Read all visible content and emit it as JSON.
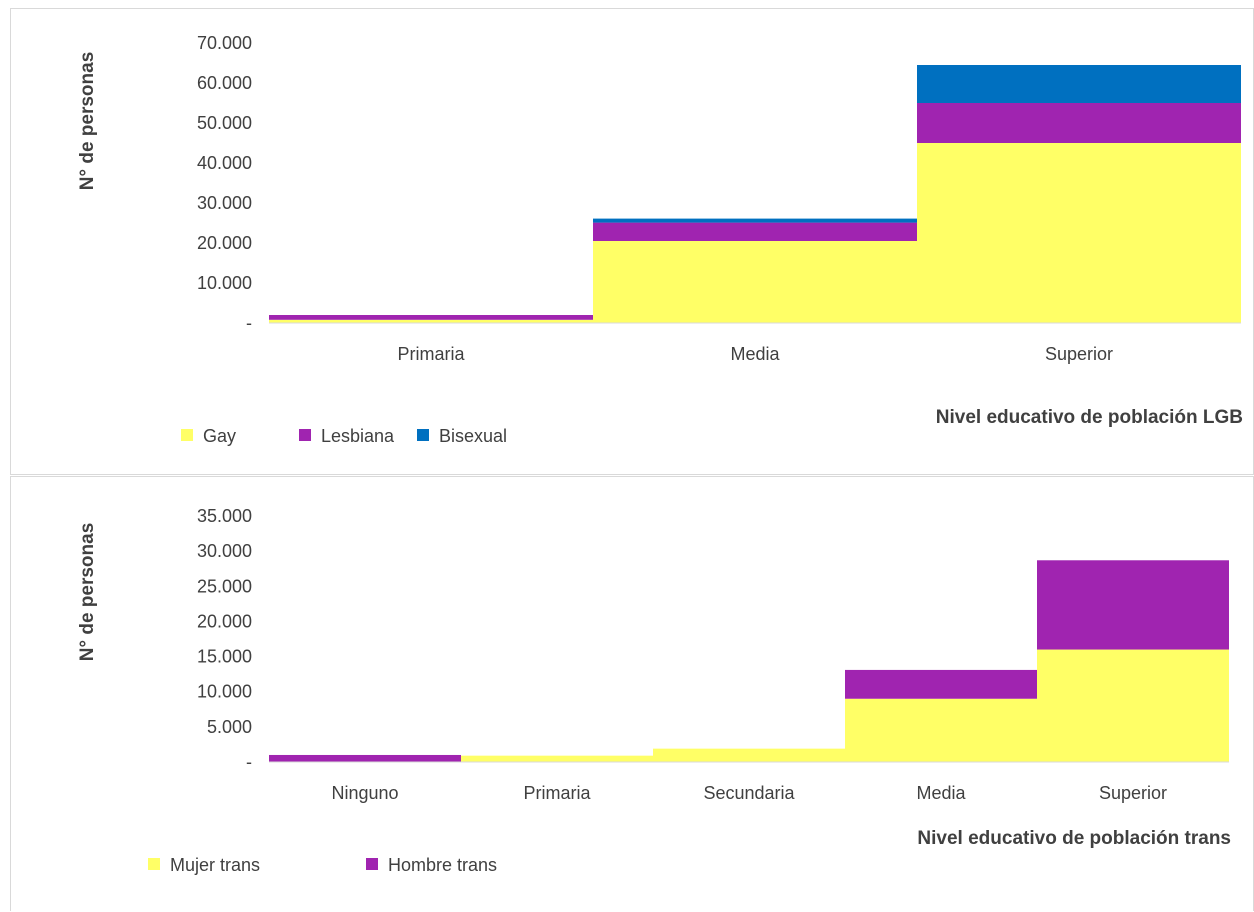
{
  "chart_data": [
    {
      "type": "bar",
      "stacked": true,
      "xlabel": "Nivel educativo de población LGB",
      "ylabel": "N° de personas",
      "ylim": [
        0,
        70000
      ],
      "yticks": [
        "-",
        "10.000",
        "20.000",
        "30.000",
        "40.000",
        "50.000",
        "60.000",
        "70.000"
      ],
      "categories": [
        "Primaria",
        "Media",
        "Superior"
      ],
      "series": [
        {
          "name": "Gay",
          "color": "#FFFF66",
          "values": [
            800,
            20500,
            45000
          ]
        },
        {
          "name": "Lesbiana",
          "color": "#A024B0",
          "values": [
            1200,
            4600,
            10000
          ]
        },
        {
          "name": "Bisexual",
          "color": "#0070C0",
          "values": [
            0,
            1000,
            9500
          ]
        }
      ],
      "grid": false,
      "legend": "bottom-left"
    },
    {
      "type": "bar",
      "stacked": true,
      "xlabel": "Nivel educativo de población trans",
      "ylabel": "N° de personas",
      "ylim": [
        0,
        35000
      ],
      "yticks": [
        "-",
        "5.000",
        "10.000",
        "15.000",
        "20.000",
        "25.000",
        "30.000",
        "35.000"
      ],
      "categories": [
        "Ninguno",
        "Primaria",
        "Secundaria",
        "Media",
        "Superior"
      ],
      "series": [
        {
          "name": "Mujer trans",
          "color": "#FFFF66",
          "values": [
            0,
            900,
            1900,
            9000,
            16000
          ]
        },
        {
          "name": "Hombre trans",
          "color": "#A024B0",
          "values": [
            1000,
            0,
            0,
            4100,
            12700
          ]
        }
      ],
      "grid": false,
      "legend": "bottom-left"
    }
  ]
}
